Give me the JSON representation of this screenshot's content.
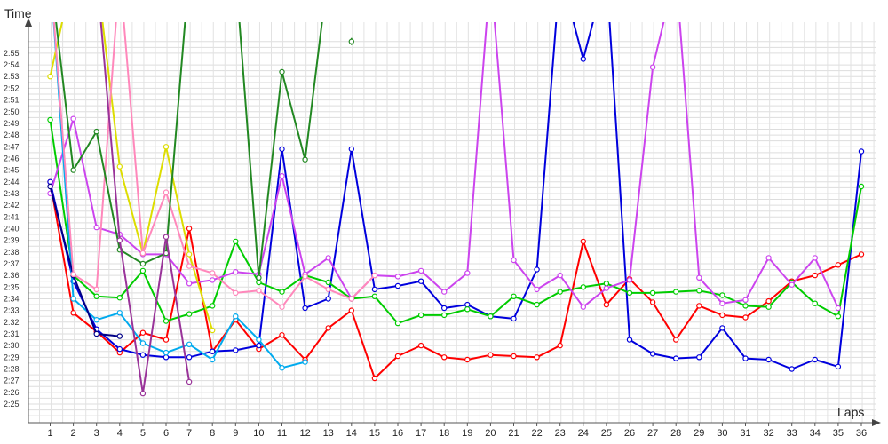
{
  "chart_data": {
    "type": "line",
    "ylabel": "Time",
    "xlabel": "Laps",
    "x": [
      1,
      2,
      3,
      4,
      5,
      6,
      7,
      8,
      9,
      10,
      11,
      12,
      13,
      14,
      15,
      16,
      17,
      18,
      19,
      20,
      21,
      22,
      23,
      24,
      25,
      26,
      27,
      28,
      29,
      30,
      31,
      32,
      33,
      34,
      35,
      36
    ],
    "yticks": [
      "2:25",
      "2:26",
      "2:27",
      "2:28",
      "2:29",
      "2:30",
      "2:31",
      "2:32",
      "2:33",
      "2:34",
      "2:35",
      "2:36",
      "2:37",
      "2:38",
      "2:39",
      "2:40",
      "2:41",
      "2:42",
      "2:43",
      "2:44",
      "2:45",
      "2:46",
      "2:47",
      "2:48",
      "2:49",
      "2:50",
      "2:51",
      "2:52",
      "2:53",
      "2:54",
      "2:55"
    ],
    "ylim_seconds": [
      144,
      176.5
    ],
    "grid": true,
    "series": [
      {
        "color": "#ff0000",
        "values": [
          164,
          152.8,
          151.2,
          149.4,
          151.1,
          150.5,
          160,
          149.5,
          152.2,
          149.7,
          150.9,
          148.8,
          151.5,
          153,
          147.2,
          149.1,
          150,
          149,
          148.8,
          149.2,
          149.1,
          149,
          150,
          158.9,
          153.5,
          155.7,
          153.7,
          150.5,
          153.4,
          152.6,
          152.4,
          153.8,
          155.5,
          156,
          156.9,
          157.8
        ]
      },
      {
        "color": "#0000dd",
        "values": [
          164,
          155.5,
          151.4,
          149.7,
          149.2,
          149,
          149,
          149.5,
          149.6,
          150,
          166.8,
          153.2,
          154,
          166.8,
          154.8,
          155.1,
          155.5,
          153.2,
          153.5,
          152.5,
          152.3,
          156.5,
          182,
          174.5,
          182,
          150.5,
          149.3,
          148.9,
          149,
          151.5,
          148.9,
          148.8,
          148,
          148.8,
          148.2,
          166.6
        ]
      },
      {
        "color": "#00cc00",
        "values": [
          169.3,
          156,
          154.2,
          154.1,
          156.4,
          152.1,
          152.7,
          153.4,
          158.9,
          155.4,
          154.6,
          156,
          155.4,
          154,
          154.2,
          151.9,
          152.6,
          152.6,
          153.1,
          152.5,
          154.2,
          153.5,
          154.6,
          155,
          155.3,
          154.5,
          154.5,
          154.6,
          154.7,
          154.3,
          153.4,
          153.3,
          155.4,
          153.6,
          152.5,
          163.6
        ]
      },
      {
        "color": "#cc44ee",
        "values": [
          163,
          169.4,
          160.1,
          159.5,
          157.8,
          157.8,
          155.3,
          155.6,
          156.3,
          156.1,
          164.5,
          156.1,
          157.5,
          154,
          156,
          155.9,
          156.4,
          154.6,
          156.2,
          182,
          157.3,
          154.8,
          156,
          153.3,
          154.9,
          155.6,
          173.8,
          182,
          155.8,
          153.6,
          153.9,
          157.5,
          155.2,
          157.5,
          153.2,
          null
        ]
      },
      {
        "color": "#00aaee",
        "values": [
          182,
          154,
          152.2,
          152.8,
          150.2,
          149.4,
          150.1,
          148.8,
          152.5,
          150.5,
          148.1,
          148.6,
          null,
          null,
          null,
          null,
          null,
          null,
          null,
          null,
          null,
          null,
          null,
          null,
          null,
          null,
          null,
          null,
          null,
          null,
          null,
          null,
          null,
          null,
          null,
          null
        ]
      },
      {
        "color": "#000088",
        "values": [
          163.6,
          156,
          151,
          150.8,
          null,
          null,
          null,
          null,
          null,
          null,
          null,
          null,
          null,
          null,
          null,
          null,
          null,
          null,
          null,
          null,
          null,
          null,
          null,
          null,
          null,
          null,
          null,
          null,
          null,
          null,
          null,
          null,
          null,
          null,
          null,
          null
        ]
      },
      {
        "color": "#dddd00",
        "values": [
          173,
          182,
          182,
          165.3,
          157.9,
          167,
          157.8,
          151.3,
          null,
          null,
          null,
          null,
          null,
          null,
          null,
          null,
          null,
          null,
          null,
          null,
          null,
          null,
          null,
          null,
          null,
          null,
          null,
          null,
          null,
          null,
          null,
          null,
          null,
          null,
          null,
          null
        ]
      },
      {
        "color": "#ff88bb",
        "values": [
          182,
          156.1,
          154.8,
          182,
          157.9,
          163.1,
          156.8,
          156.2,
          154.5,
          154.7,
          153.3,
          155.9,
          154.8,
          154,
          156,
          null,
          null,
          null,
          null,
          null,
          null,
          null,
          null,
          null,
          null,
          null,
          null,
          null,
          null,
          null,
          null,
          null,
          null,
          null,
          null,
          null
        ]
      },
      {
        "color": "#228822",
        "values": [
          182,
          165,
          168.3,
          158.2,
          157,
          157.9,
          182,
          null,
          182,
          155.8,
          173.4,
          165.9,
          182,
          null,
          null,
          null,
          null,
          null,
          null,
          null,
          null,
          null,
          null,
          null,
          null,
          null,
          null,
          null,
          null,
          null,
          null,
          null,
          null,
          null,
          null,
          null
        ]
      },
      {
        "color": "#993399",
        "values": [
          182,
          182,
          182,
          159,
          145.9,
          159.3,
          146.9,
          null,
          null,
          null,
          null,
          null,
          null,
          null,
          null,
          null,
          null,
          null,
          null,
          null,
          null,
          null,
          null,
          null,
          null,
          null,
          null,
          null,
          null,
          null,
          null,
          null,
          null,
          null,
          null,
          null
        ]
      }
    ],
    "isolated_markers": [
      {
        "x": 14,
        "y": 176,
        "color": "#228822"
      }
    ]
  }
}
